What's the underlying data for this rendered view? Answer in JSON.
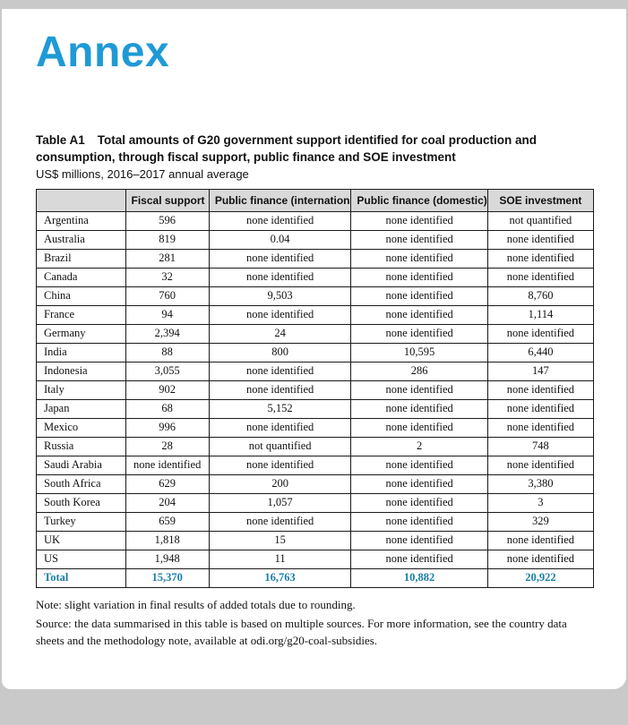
{
  "theme": {
    "accent_color": "#1f9ad6",
    "total_color": "#1a7fa6",
    "header_bg": "#d9d9d9"
  },
  "page": {
    "heading": "Annex"
  },
  "table": {
    "title_label": "Table A1",
    "title": "Total amounts of G20 government support identified for coal production and consumption, through fiscal support, public finance and SOE investment",
    "subtitle": "US$ millions, 2016–2017 annual average",
    "columns": [
      "",
      "Fiscal support",
      "Public finance (international)",
      "Public finance (domestic)",
      "SOE investment"
    ],
    "rows": [
      {
        "country": "Argentina",
        "values": [
          "596",
          "none identified",
          "none identified",
          "not quantified"
        ]
      },
      {
        "country": "Australia",
        "values": [
          "819",
          "0.04",
          "none identified",
          "none identified"
        ]
      },
      {
        "country": "Brazil",
        "values": [
          "281",
          "none identified",
          "none identified",
          "none identified"
        ]
      },
      {
        "country": "Canada",
        "values": [
          "32",
          "none identified",
          "none identified",
          "none identified"
        ]
      },
      {
        "country": "China",
        "values": [
          "760",
          "9,503",
          "none identified",
          "8,760"
        ]
      },
      {
        "country": "France",
        "values": [
          "94",
          "none identified",
          "none identified",
          "1,114"
        ]
      },
      {
        "country": "Germany",
        "values": [
          "2,394",
          "24",
          "none identified",
          "none identified"
        ]
      },
      {
        "country": "India",
        "values": [
          "88",
          "800",
          "10,595",
          "6,440"
        ]
      },
      {
        "country": "Indonesia",
        "values": [
          "3,055",
          "none identified",
          "286",
          "147"
        ]
      },
      {
        "country": "Italy",
        "values": [
          "902",
          "none identified",
          "none identified",
          "none identified"
        ]
      },
      {
        "country": "Japan",
        "values": [
          "68",
          "5,152",
          "none identified",
          "none identified"
        ]
      },
      {
        "country": "Mexico",
        "values": [
          "996",
          "none identified",
          "none identified",
          "none identified"
        ]
      },
      {
        "country": "Russia",
        "values": [
          "28",
          "not quantified",
          "2",
          "748"
        ]
      },
      {
        "country": "Saudi Arabia",
        "values": [
          "none identified",
          "none identified",
          "none identified",
          "none identified"
        ]
      },
      {
        "country": "South Africa",
        "values": [
          "629",
          "200",
          "none identified",
          "3,380"
        ]
      },
      {
        "country": "South Korea",
        "values": [
          "204",
          "1,057",
          "none identified",
          "3"
        ]
      },
      {
        "country": "Turkey",
        "values": [
          "659",
          "none identified",
          "none identified",
          "329"
        ]
      },
      {
        "country": "UK",
        "values": [
          "1,818",
          "15",
          "none identified",
          "none identified"
        ]
      },
      {
        "country": "US",
        "values": [
          "1,948",
          "11",
          "none identified",
          "none identified"
        ]
      }
    ],
    "total": {
      "label": "Total",
      "values": [
        "15,370",
        "16,763",
        "10,882",
        "20,922"
      ]
    }
  },
  "notes": {
    "note": "Note: slight variation in final results of added totals due to rounding.",
    "source": "Source: the data summarised in this table is based on multiple sources. For more information, see the country data sheets and the methodology note, available at odi.org/g20-coal-subsidies."
  }
}
